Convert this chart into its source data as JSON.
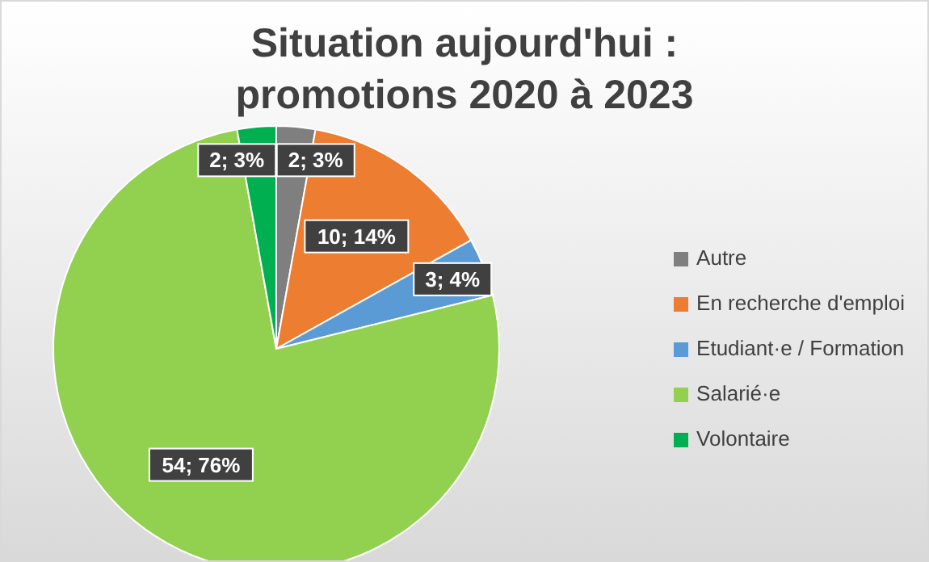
{
  "chart_data": {
    "type": "pie",
    "title": "Situation aujourd'hui :\npromotions 2020 à 2023",
    "categories": [
      "Autre",
      "En recherche d'emploi",
      "Etudiant·e / Formation",
      "Salarié·e",
      "Volontaire"
    ],
    "values": [
      2,
      10,
      3,
      54,
      2
    ],
    "colors": [
      "#7f7f7f",
      "#ed7d31",
      "#5b9bd5",
      "#92d050",
      "#00b050"
    ],
    "value_labels": [
      "2; 3%",
      "10; 14%",
      "3; 4%",
      "54; 76%",
      "2; 3%"
    ],
    "legend": "right"
  }
}
